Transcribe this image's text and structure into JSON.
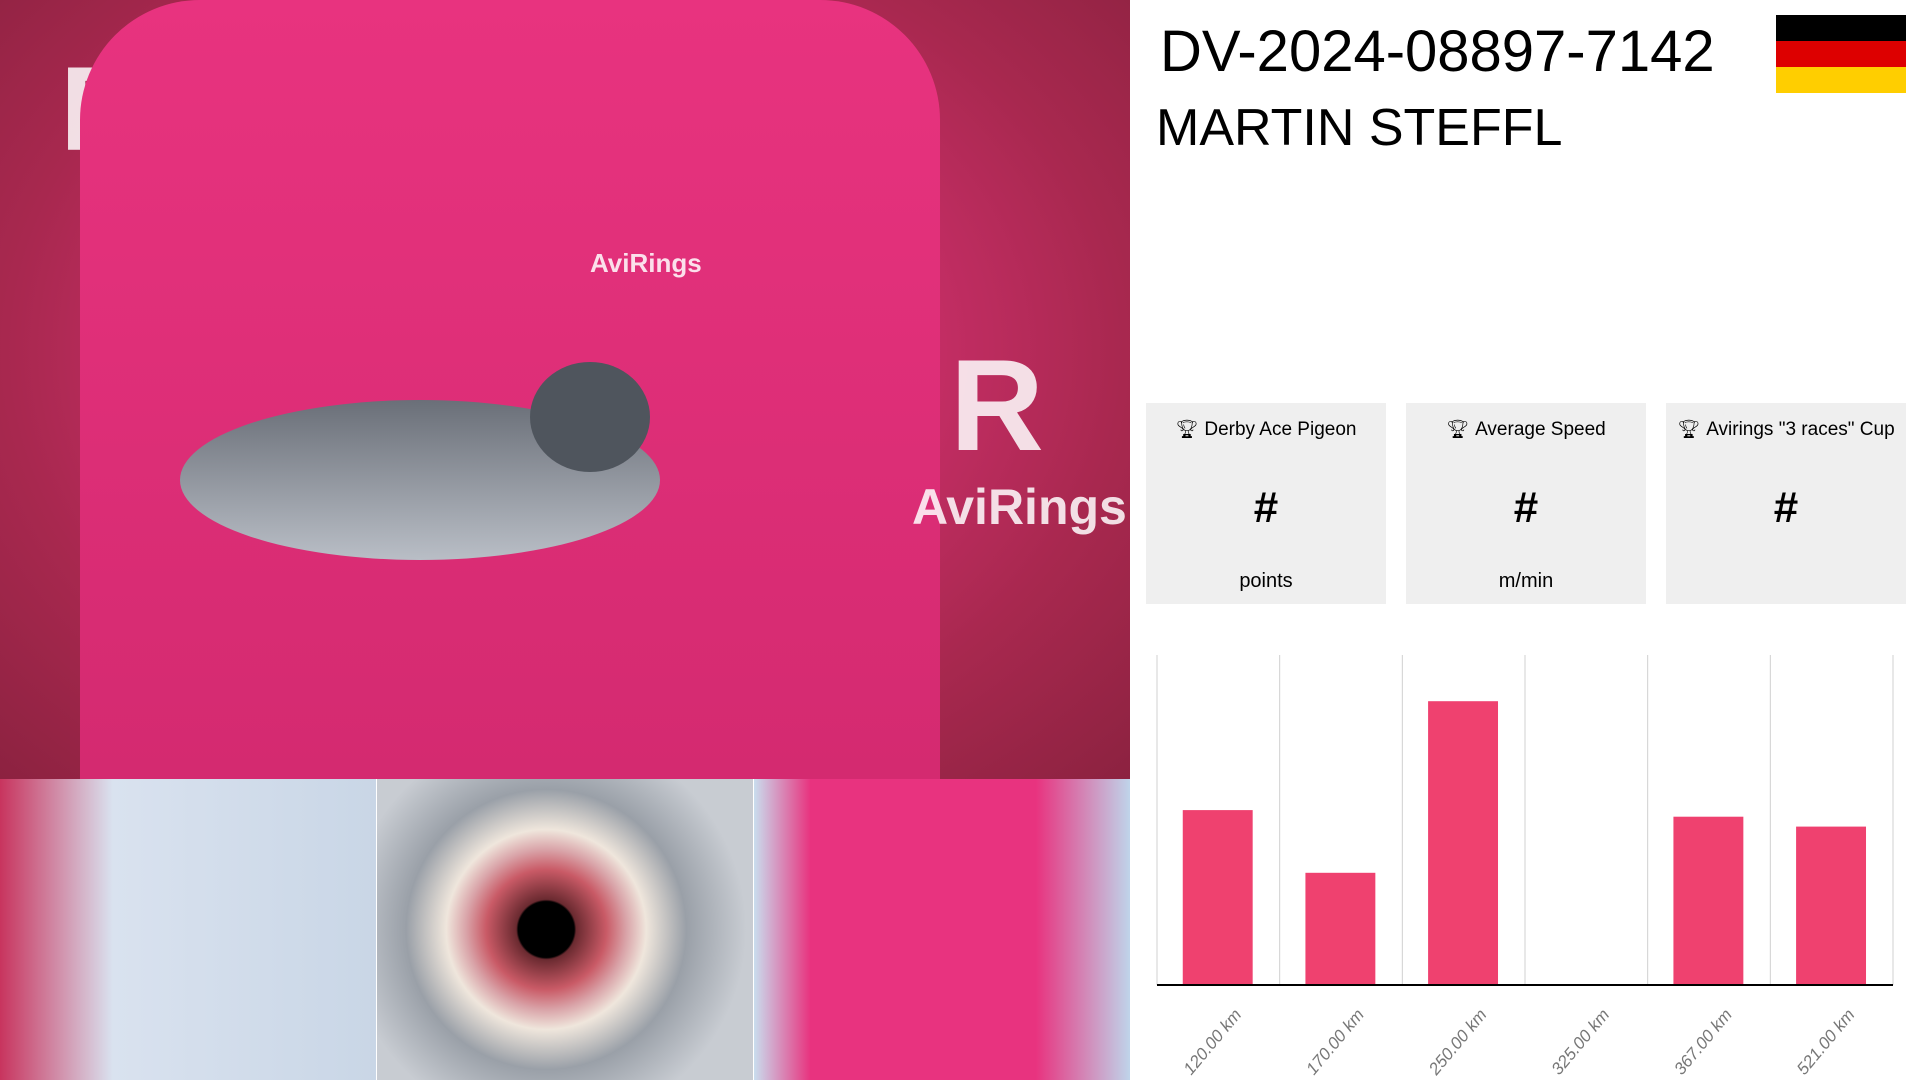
{
  "header": {
    "ring_id": "DV-2024-08897-7142",
    "owner": "MARTIN STEFFL",
    "flag": {
      "country": "Germany",
      "colors": [
        "#000000",
        "#dd0000",
        "#ffce00"
      ]
    }
  },
  "photos": {
    "brand_text": "AviRings"
  },
  "stats": [
    {
      "icon": "trophy-icon",
      "title": "Derby Ace Pigeon",
      "value": "#",
      "unit": "points"
    },
    {
      "icon": "trophy-icon",
      "title": "Average Speed",
      "value": "#",
      "unit": "m/min"
    },
    {
      "icon": "trophy-icon",
      "title": "Avirings \"3 races\" Cup",
      "value": "#",
      "unit": ""
    }
  ],
  "chart_data": {
    "type": "bar",
    "categories": [
      "120.00 km",
      "170.00 km",
      "250.00 km",
      "325.00 km",
      "367.00 km",
      "521.00 km"
    ],
    "values": [
      0.53,
      0.34,
      0.86,
      0,
      0.51,
      0.48
    ],
    "ylim": [
      0,
      1
    ],
    "grid": "vertical",
    "bar_color": "#ef416f",
    "title": "",
    "xlabel": "",
    "ylabel": ""
  }
}
